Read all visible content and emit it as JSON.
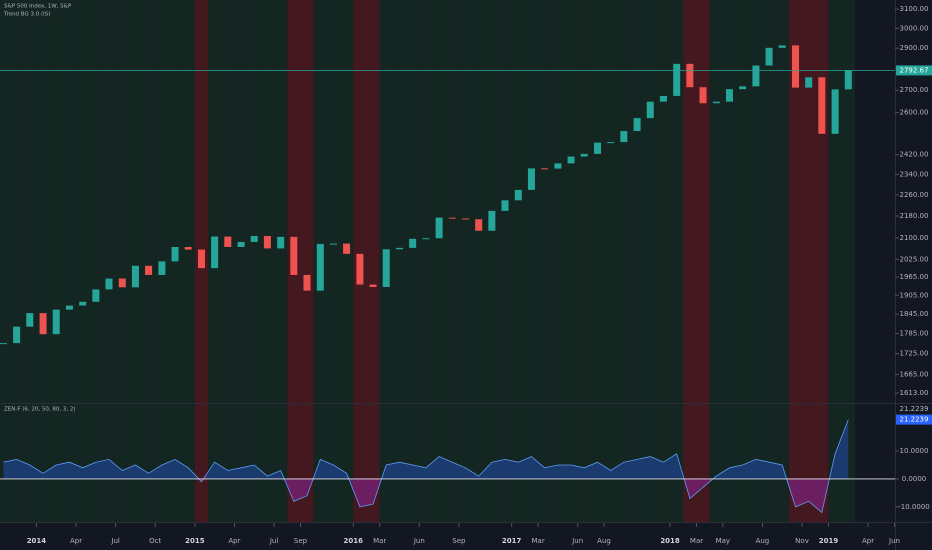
{
  "chart_data": [
    {
      "type": "candlestick",
      "title": "S&P 500 Index, 1W, S&P",
      "subtitle": "Trend BG 3.0 (IS)",
      "x": [
        2013.792,
        2013.875,
        2013.958,
        2014.042,
        2014.125,
        2014.208,
        2014.292,
        2014.375,
        2014.458,
        2014.542,
        2014.625,
        2014.708,
        2014.792,
        2014.875,
        2014.958,
        2015.042,
        2015.125,
        2015.208,
        2015.292,
        2015.375,
        2015.458,
        2015.542,
        2015.625,
        2015.708,
        2015.792,
        2015.875,
        2015.958,
        2016.042,
        2016.125,
        2016.208,
        2016.292,
        2016.375,
        2016.458,
        2016.542,
        2016.625,
        2016.708,
        2016.792,
        2016.875,
        2016.958,
        2017.042,
        2017.125,
        2017.208,
        2017.292,
        2017.375,
        2017.458,
        2017.542,
        2017.625,
        2017.708,
        2017.792,
        2017.875,
        2017.958,
        2018.042,
        2018.125,
        2018.208,
        2018.292,
        2018.375,
        2018.458,
        2018.542,
        2018.625,
        2018.708,
        2018.792,
        2018.875,
        2018.958,
        2019.042,
        2019.125
      ],
      "values": [
        1756,
        1806,
        1848,
        1783,
        1859,
        1872,
        1884,
        1924,
        1960,
        1931,
        2003,
        1972,
        2018,
        2068,
        2059,
        1995,
        2105,
        2068,
        2086,
        2107,
        2063,
        2104,
        1972,
        1920,
        2079,
        2080,
        2044,
        1940,
        1932,
        2060,
        2065,
        2097,
        2099,
        2174,
        2171,
        2168,
        2126,
        2199,
        2239,
        2279,
        2364,
        2363,
        2384,
        2412,
        2423,
        2470,
        2472,
        2519,
        2575,
        2648,
        2674,
        2824,
        2714,
        2641,
        2648,
        2705,
        2718,
        2816,
        2902,
        2914,
        2712,
        2760,
        2507,
        2704,
        2792.67
      ],
      "colors": {
        "up": "#26a69a",
        "down": "#ef5350"
      },
      "xlim": [
        2013.77,
        2019.42
      ],
      "ylim": [
        1586,
        3148
      ],
      "log_scale": true,
      "yticks": [
        {
          "value": 3100,
          "label": "3100.00"
        },
        {
          "value": 3000,
          "label": "3000.00"
        },
        {
          "value": 2900,
          "label": "2900.00"
        },
        {
          "value": 2800,
          "label": "2800.00"
        },
        {
          "value": 2700,
          "label": "2700.00"
        },
        {
          "value": 2600,
          "label": "2600.00"
        },
        {
          "value": 2420,
          "label": "2420.00"
        },
        {
          "value": 2340,
          "label": "2340.00"
        },
        {
          "value": 2260,
          "label": "2260.00"
        },
        {
          "value": 2180,
          "label": "2180.00"
        },
        {
          "value": 2100,
          "label": "2100.00"
        },
        {
          "value": 2025,
          "label": "2025.00"
        },
        {
          "value": 1965,
          "label": "1965.00"
        },
        {
          "value": 1905,
          "label": "1905.00"
        },
        {
          "value": 1845,
          "label": "1845.00"
        },
        {
          "value": 1785,
          "label": "1785.00"
        },
        {
          "value": 1725,
          "label": "1725.00"
        },
        {
          "value": 1665,
          "label": "1665.00"
        },
        {
          "value": 1613,
          "label": "1613.00"
        }
      ],
      "last_price_line_color": "#26a69a",
      "grid": false
    },
    {
      "type": "area",
      "title": "ZEN-F (6, 20, 50, 80, 3, 2)",
      "x": [
        2013.792,
        2013.875,
        2013.958,
        2014.042,
        2014.125,
        2014.208,
        2014.292,
        2014.375,
        2014.458,
        2014.542,
        2014.625,
        2014.708,
        2014.792,
        2014.875,
        2014.958,
        2015.042,
        2015.125,
        2015.208,
        2015.292,
        2015.375,
        2015.458,
        2015.542,
        2015.625,
        2015.708,
        2015.792,
        2015.875,
        2015.958,
        2016.042,
        2016.125,
        2016.208,
        2016.292,
        2016.375,
        2016.458,
        2016.542,
        2016.625,
        2016.708,
        2016.792,
        2016.875,
        2016.958,
        2017.042,
        2017.125,
        2017.208,
        2017.292,
        2017.375,
        2017.458,
        2017.542,
        2017.625,
        2017.708,
        2017.792,
        2017.875,
        2017.958,
        2018.042,
        2018.125,
        2018.208,
        2018.292,
        2018.375,
        2018.458,
        2018.542,
        2018.625,
        2018.708,
        2018.792,
        2018.875,
        2018.958,
        2019.042,
        2019.125
      ],
      "values": [
        6,
        7,
        5,
        2,
        5,
        6,
        4,
        6,
        7,
        3,
        5,
        2,
        5,
        7,
        4,
        -1,
        6,
        3,
        4,
        5,
        1,
        3,
        -8,
        -6,
        7,
        5,
        2,
        -10,
        -9,
        5,
        6,
        5,
        4,
        8,
        6,
        4,
        1,
        6,
        7,
        6,
        8,
        4,
        5,
        5,
        4,
        6,
        3,
        6,
        7,
        8,
        6,
        9,
        -7,
        -3,
        1,
        4,
        5,
        7,
        6,
        5,
        -10,
        -8,
        -12,
        9,
        21.2239
      ],
      "colors": {
        "line": "#5b9cf6",
        "above": "#2962ff",
        "below": "#9c27b0",
        "zero_line": "#e0e3eb"
      },
      "background_colors": {
        "up": "#1b5e20",
        "down": "#b71c1c"
      },
      "xlim": [
        2013.77,
        2019.42
      ],
      "xticks": [
        2014,
        {
          "value": 2014.25,
          "label": "Apr"
        },
        {
          "value": 2014.5,
          "label": "Jul"
        },
        {
          "value": 2014.75,
          "label": "Oct"
        },
        2015,
        {
          "value": 2015.25,
          "label": "Apr"
        },
        {
          "value": 2015.5,
          "label": "Jul"
        },
        {
          "value": 2015.667,
          "label": "Sep"
        },
        2016,
        {
          "value": 2016.167,
          "label": "Mar"
        },
        {
          "value": 2016.417,
          "label": "Jun"
        },
        {
          "value": 2016.667,
          "label": "Sep"
        },
        2017,
        {
          "value": 2017.167,
          "label": "Mar"
        },
        {
          "value": 2017.417,
          "label": "Jun"
        },
        {
          "value": 2017.583,
          "label": "Aug"
        },
        2018,
        {
          "value": 2018.167,
          "label": "Mar"
        },
        {
          "value": 2018.333,
          "label": "May"
        },
        {
          "value": 2018.583,
          "label": "Aug"
        },
        {
          "value": 2018.833,
          "label": "Nov"
        },
        2019,
        {
          "value": 2019.25,
          "label": "Apr"
        },
        {
          "value": 2019.417,
          "label": "Jun"
        }
      ],
      "ylim": [
        -15.4,
        26.8
      ],
      "yticks": [
        {
          "value": 10,
          "label": "10.0000"
        },
        {
          "value": 0,
          "label": "0.0000"
        },
        {
          "value": -10,
          "label": "-10.0000"
        }
      ]
    }
  ]
}
